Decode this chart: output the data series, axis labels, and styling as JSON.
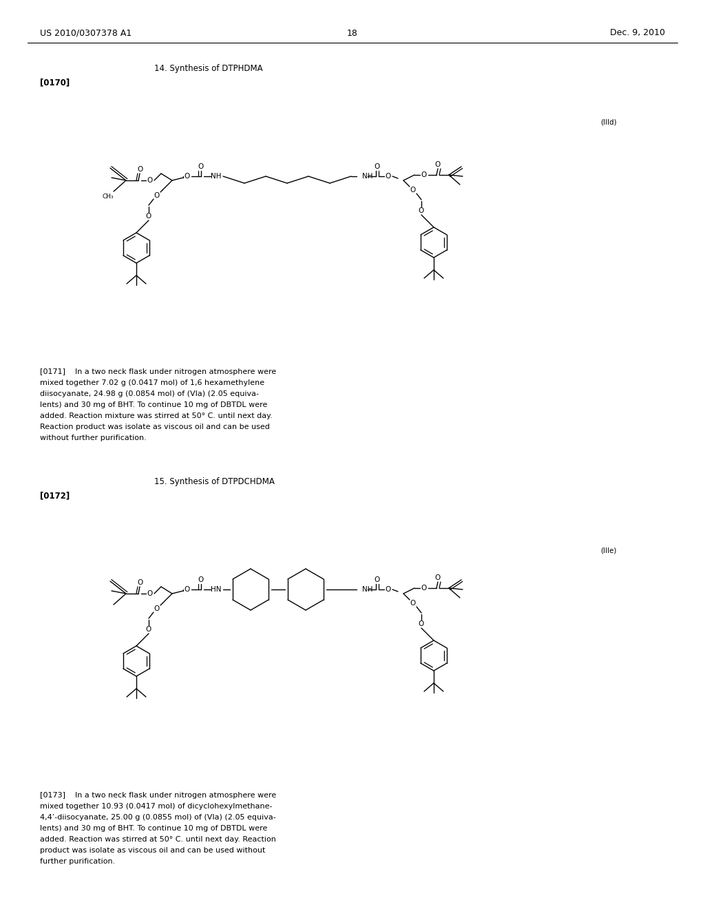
{
  "header_left": "US 2010/0307378 A1",
  "header_right": "Dec. 9, 2010",
  "page_number": "18",
  "section1_heading": "14. Synthesis of DTPHDMA",
  "section1_ref": "[0170]",
  "section1_label": "(IIId)",
  "section1_paragraph_lines": [
    "[0171]    In a two neck flask under nitrogen atmosphere were",
    "mixed together 7.02 g (0.0417 mol) of 1,6 hexamethylene",
    "diisocyanate, 24.98 g (0.0854 mol) of (VIa) (2.05 equiva-",
    "lents) and 30 mg of BHT. To continue 10 mg of DBTDL were",
    "added. Reaction mixture was stirred at 50° C. until next day.",
    "Reaction product was isolate as viscous oil and can be used",
    "without further purification."
  ],
  "section2_heading": "15. Synthesis of DTPDCHDMA",
  "section2_ref": "[0172]",
  "section2_label": "(IIIe)",
  "section2_paragraph_lines": [
    "[0173]    In a two neck flask under nitrogen atmosphere were",
    "mixed together 10.93 (0.0417 mol) of dicyclohexylmethane-",
    "4,4’-diisocyanate, 25.00 g (0.0855 mol) of (VIa) (2.05 equiva-",
    "lents) and 30 mg of BHT. To continue 10 mg of DBTDL were",
    "added. Reaction was stirred at 50° C. until next day. Reaction",
    "product was isolate as viscous oil and can be used without",
    "further purification."
  ]
}
